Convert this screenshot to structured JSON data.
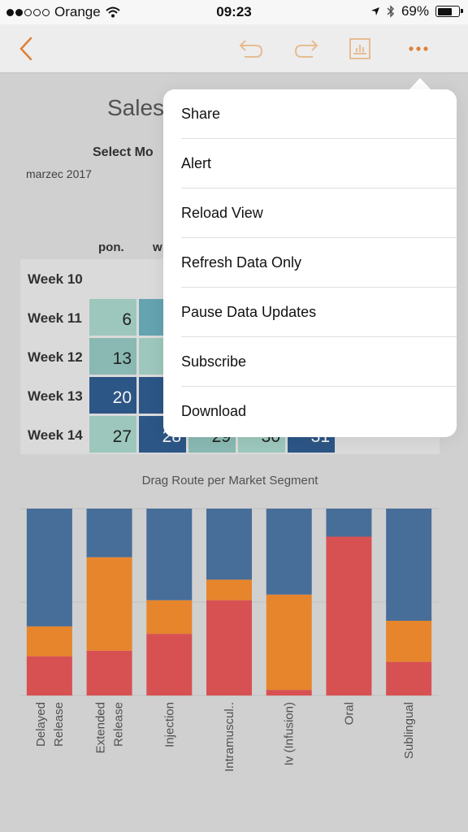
{
  "status_bar": {
    "carrier": "Orange",
    "time": "09:23",
    "battery": "69%",
    "signal_bars_filled": 2,
    "signal_bars_total": 5,
    "battery_level": 0.69
  },
  "toolbar": {
    "back_icon": "chevron-left-icon",
    "undo_icon": "undo-icon",
    "redo_icon": "redo-icon",
    "chart_icon": "chart-icon",
    "more_icon": "more-icon",
    "accent": "#e8873a"
  },
  "dashboard": {
    "title": "Sales",
    "select_month_label": "Select Mo",
    "month_value": "marzec 2017",
    "calendar": {
      "day_headers": [
        "pon.",
        "w"
      ],
      "weeks": [
        {
          "label": "Week 10",
          "days": []
        },
        {
          "label": "Week 11",
          "days": [
            "6"
          ]
        },
        {
          "label": "Week 12",
          "days": [
            "13"
          ]
        },
        {
          "label": "Week 13",
          "days": [
            "20"
          ]
        },
        {
          "label": "Week 14",
          "days": [
            "27",
            "28",
            "29",
            "30",
            "31"
          ]
        }
      ]
    },
    "colors": {
      "very_light": "#a4d0c4",
      "light": "#8fc1ba",
      "mid": "#6aaab9",
      "dark": "#2e5a8c"
    }
  },
  "chart_data": {
    "type": "bar",
    "stacked": true,
    "title": "Drag Route per Market Segment",
    "categories": [
      "Delayed Release",
      "Extended Release",
      "Injection",
      "Intramuscul..",
      "Iv (Infusion)",
      "Oral",
      "Sublingual"
    ],
    "series": [
      {
        "color": "#e05557",
        "values": [
          0.21,
          0.24,
          0.33,
          0.51,
          0.03,
          0.85,
          0.18
        ]
      },
      {
        "color": "#f08b2e",
        "values": [
          0.16,
          0.5,
          0.18,
          0.11,
          0.51,
          0.0,
          0.22
        ]
      },
      {
        "color": "#4a72a0",
        "values": [
          0.63,
          0.26,
          0.49,
          0.38,
          0.46,
          0.15,
          0.6
        ]
      }
    ],
    "ylim": [
      0,
      1
    ],
    "grid": true
  },
  "menu": {
    "items": [
      "Share",
      "Alert",
      "Reload View",
      "Refresh Data Only",
      "Pause Data Updates",
      "Subscribe",
      "Download"
    ]
  }
}
